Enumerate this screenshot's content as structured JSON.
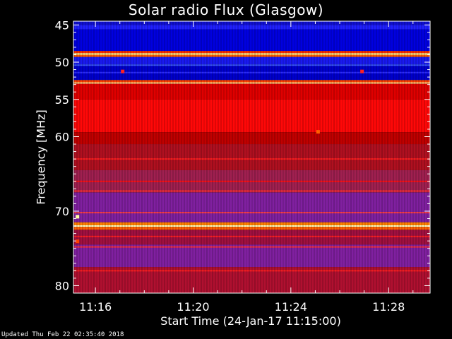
{
  "chart_data": {
    "type": "heatmap",
    "title": "Solar radio Flux (Glasgow)",
    "xlabel": "Start Time (24-Jan-17 11:15:00)",
    "ylabel": "Frequency [MHz]",
    "x_ticks": [
      "11:16",
      "11:20",
      "11:24",
      "11:28"
    ],
    "x_tick_minutes": [
      16,
      20,
      24,
      28
    ],
    "xlim_minutes": [
      15.1,
      29.7
    ],
    "y_ticks": [
      45,
      50,
      55,
      60,
      70,
      80
    ],
    "ylim": [
      44.5,
      81
    ],
    "footer": "Updated Thu Feb 22 02:35:40 2018",
    "colormap": [
      "#000000",
      "#1010d0",
      "#0000ff",
      "#7000b0",
      "#c00000",
      "#ff0000",
      "#ff8000",
      "#ffff80",
      "#ffffff"
    ],
    "bands": [
      {
        "from": 44.5,
        "to": 45.0,
        "color": "#1010d0"
      },
      {
        "from": 45.0,
        "to": 45.6,
        "color": "#2020ff"
      },
      {
        "from": 45.6,
        "to": 48.5,
        "color": "#0000e0"
      },
      {
        "from": 48.5,
        "to": 48.8,
        "color": "#ff3000"
      },
      {
        "from": 48.8,
        "to": 49.0,
        "color": "#ffffa0"
      },
      {
        "from": 49.0,
        "to": 49.3,
        "color": "#ff6000"
      },
      {
        "from": 49.3,
        "to": 50.3,
        "color": "#1a1af0"
      },
      {
        "from": 50.3,
        "to": 52.4,
        "color": "#0000cc"
      },
      {
        "from": 52.4,
        "to": 52.7,
        "color": "#ff4000"
      },
      {
        "from": 52.7,
        "to": 52.9,
        "color": "#ffd080"
      },
      {
        "from": 52.9,
        "to": 55.0,
        "color": "#e00000"
      },
      {
        "from": 55.0,
        "to": 59.4,
        "color": "#ff0808"
      },
      {
        "from": 59.4,
        "to": 61.0,
        "color": "#c00000"
      },
      {
        "from": 61.0,
        "to": 64.5,
        "color": "#b01020"
      },
      {
        "from": 64.5,
        "to": 67.5,
        "color": "#a02050"
      },
      {
        "from": 67.5,
        "to": 71.5,
        "color": "#8020a0"
      },
      {
        "from": 71.5,
        "to": 71.9,
        "color": "#ff8000"
      },
      {
        "from": 71.9,
        "to": 72.1,
        "color": "#ffffc0"
      },
      {
        "from": 72.1,
        "to": 72.5,
        "color": "#ff6000"
      },
      {
        "from": 72.5,
        "to": 74.5,
        "color": "#a01040"
      },
      {
        "from": 74.5,
        "to": 77.5,
        "color": "#8020a0"
      },
      {
        "from": 77.5,
        "to": 81.0,
        "color": "#b01030"
      }
    ],
    "lines": [
      {
        "freq": 50.4,
        "color": "#4060ff"
      },
      {
        "freq": 51.4,
        "color": "#3030ff"
      },
      {
        "freq": 63.0,
        "color": "#ff2020"
      },
      {
        "freq": 66.0,
        "color": "#ff1010"
      },
      {
        "freq": 67.3,
        "color": "#ff3030"
      },
      {
        "freq": 70.2,
        "color": "#ff4040"
      },
      {
        "freq": 73.4,
        "color": "#ff2020"
      },
      {
        "freq": 74.8,
        "color": "#ff3030"
      },
      {
        "freq": 78.0,
        "color": "#ff2020"
      }
    ],
    "spots": [
      {
        "minute": 17.1,
        "freq": 51.2,
        "color": "#ff2020"
      },
      {
        "minute": 26.9,
        "freq": 51.2,
        "color": "#ff2020"
      },
      {
        "minute": 25.1,
        "freq": 59.3,
        "color": "#ff6000"
      },
      {
        "minute": 15.25,
        "freq": 70.7,
        "color": "#ffffa0"
      },
      {
        "minute": 15.25,
        "freq": 74.0,
        "color": "#ff4000"
      }
    ]
  }
}
